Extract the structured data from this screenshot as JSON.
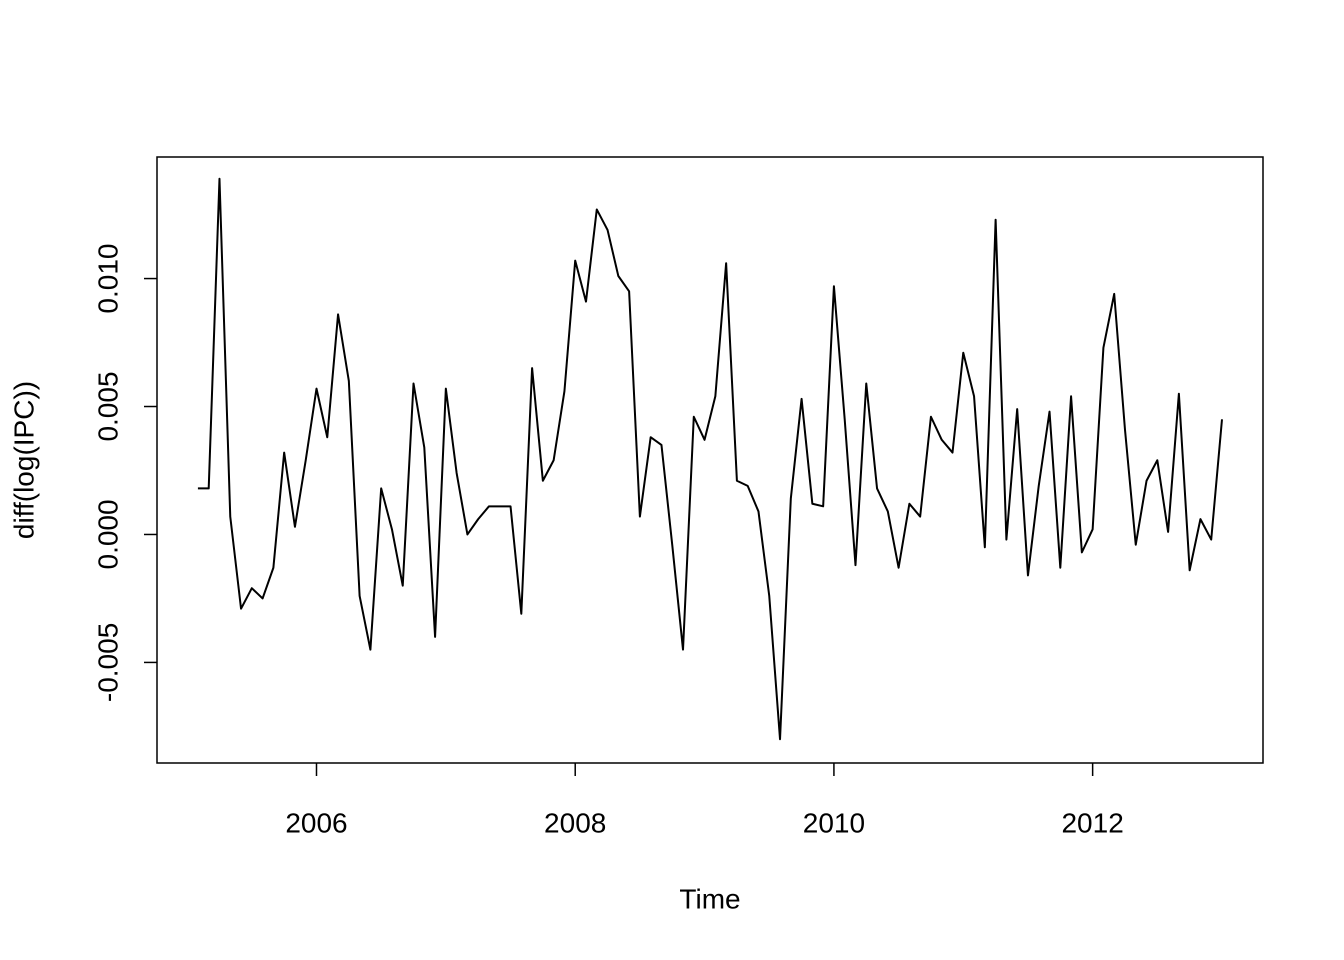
{
  "chart_data": {
    "type": "line",
    "xlabel": "Time",
    "ylabel": "diff(log(IPC))",
    "color": "#000000",
    "x": [
      2005.0833,
      2005.1667,
      2005.25,
      2005.3333,
      2005.4167,
      2005.5,
      2005.5833,
      2005.6667,
      2005.75,
      2005.8333,
      2005.9167,
      2006,
      2006.0833,
      2006.1667,
      2006.25,
      2006.3333,
      2006.4167,
      2006.5,
      2006.5833,
      2006.6667,
      2006.75,
      2006.8333,
      2006.9167,
      2007,
      2007.0833,
      2007.1667,
      2007.25,
      2007.3333,
      2007.4167,
      2007.5,
      2007.5833,
      2007.6667,
      2007.75,
      2007.8333,
      2007.9167,
      2008,
      2008.0833,
      2008.1667,
      2008.25,
      2008.3333,
      2008.4167,
      2008.5,
      2008.5833,
      2008.6667,
      2008.75,
      2008.8333,
      2008.9167,
      2009,
      2009.0833,
      2009.1667,
      2009.25,
      2009.3333,
      2009.4167,
      2009.5,
      2009.5833,
      2009.6667,
      2009.75,
      2009.8333,
      2009.9167,
      2010,
      2010.0833,
      2010.1667,
      2010.25,
      2010.3333,
      2010.4167,
      2010.5,
      2010.5833,
      2010.6667,
      2010.75,
      2010.8333,
      2010.9167,
      2011,
      2011.0833,
      2011.1667,
      2011.25,
      2011.3333,
      2011.4167,
      2011.5,
      2011.5833,
      2011.6667,
      2011.75,
      2011.8333,
      2011.9167,
      2012,
      2012.0833,
      2012.1667,
      2012.25,
      2012.3333,
      2012.4167,
      2012.5,
      2012.5833,
      2012.6667,
      2012.75,
      2012.8333,
      2012.9167,
      2013
    ],
    "values": [
      0.0018,
      0.0018,
      0.0139,
      0.0007,
      -0.0029,
      -0.0021,
      -0.0025,
      -0.0013,
      0.0032,
      0.0003,
      0.0029,
      0.0057,
      0.0038,
      0.0086,
      0.006,
      -0.0024,
      -0.0045,
      0.0018,
      0.0002,
      -0.002,
      0.0059,
      0.0034,
      -0.004,
      0.0057,
      0.0024,
      0,
      0.0006,
      0.0011,
      0.0011,
      0.0011,
      -0.0031,
      0.0065,
      0.0021,
      0.0029,
      0.0056,
      0.0107,
      0.0091,
      0.0127,
      0.0119,
      0.0101,
      0.0095,
      0.0007,
      0.0038,
      0.0035,
      -0.0004,
      -0.0045,
      0.0046,
      0.0037,
      0.0054,
      0.0106,
      0.0021,
      0.0019,
      0.0009,
      -0.0024,
      -0.008,
      0.0014,
      0.0053,
      0.0012,
      0.0011,
      0.0097,
      0.0045,
      -0.0012,
      0.0059,
      0.0018,
      0.0009,
      -0.0013,
      0.0012,
      0.0007,
      0.0046,
      0.0037,
      0.0032,
      0.0071,
      0.0054,
      -0.0005,
      0.0123,
      -0.0002,
      0.0049,
      -0.0016,
      0.0019,
      0.0048,
      -0.0013,
      0.0054,
      -0.0007,
      0.0002,
      0.0073,
      0.0094,
      0.0041,
      -0.0004,
      0.0021,
      0.0029,
      0.0001,
      0.0055,
      -0.0014,
      0.0006,
      -0.0002,
      0.0045
    ],
    "xlim": [
      2004.767,
      2013.317
    ],
    "ylim": [
      -0.00893,
      0.01475
    ],
    "xticks": [
      2006,
      2008,
      2010,
      2012
    ],
    "yticks": [
      -0.005,
      {
        "value": 0,
        "label": "0.000"
      },
      {
        "value": 0.005,
        "label": "0.005"
      },
      {
        "value": 0.01,
        "label": "0.010"
      }
    ]
  }
}
